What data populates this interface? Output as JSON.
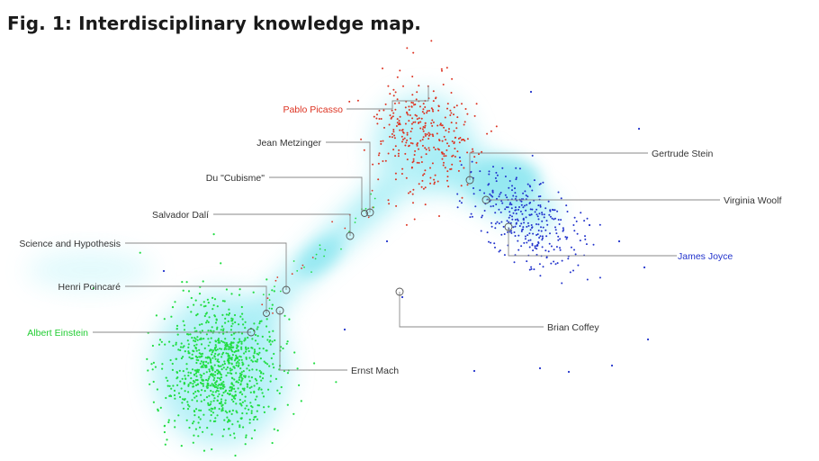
{
  "figure": {
    "title": "Fig. 1: Interdisciplinary knowledge map."
  },
  "colors": {
    "science": "#22dd44",
    "art": "#dd3322",
    "literature": "#2233cc",
    "bridge": "#55e6f0",
    "label_default": "#333333",
    "leader_line": "#8a8a8a"
  },
  "labels": {
    "picasso": "Pablo Picasso",
    "metzinger": "Jean Metzinger",
    "cubisme": "Du \"Cubisme\"",
    "dali": "Salvador Dalí",
    "science_hypothesis": "Science and Hypothesis",
    "poincare": "Henri Poincaré",
    "einstein": "Albert Einstein",
    "mach": "Ernst Mach",
    "stein": "Gertrude Stein",
    "woolf": "Virginia Woolf",
    "joyce": "James Joyce",
    "coffey": "Brian Coffey"
  }
}
